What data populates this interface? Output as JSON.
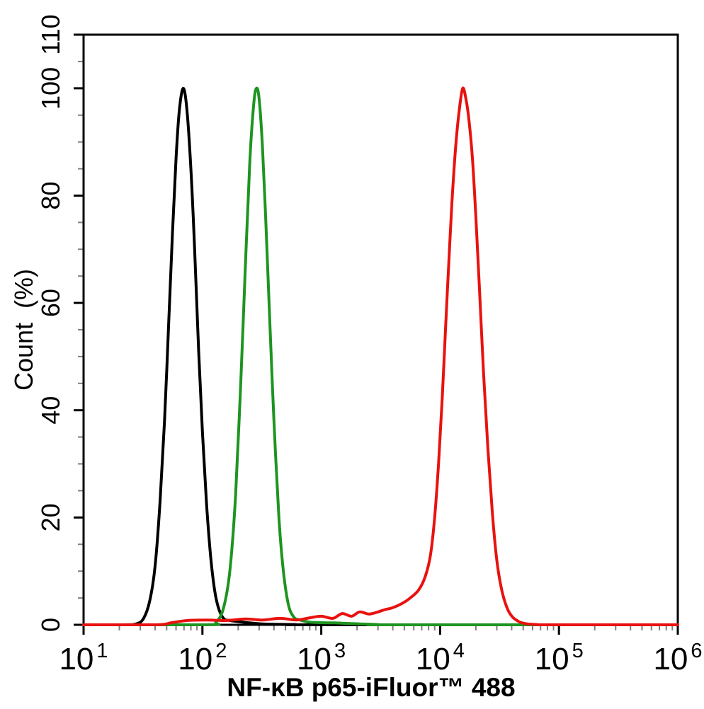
{
  "chart_data": {
    "type": "line",
    "subtype": "flow-cytometry-histogram",
    "title": "",
    "xlabel": "NF-κB p65-iFluor™ 488",
    "ylabel": "Count  (%)",
    "x_scale": "log10",
    "xlim": [
      10,
      1000000
    ],
    "ylim": [
      0,
      110
    ],
    "grid": false,
    "legend": "none",
    "background_color": "#ffffff",
    "axis_color": "#000000",
    "minor_tick_color": "#808080",
    "x_ticks": {
      "base": "10",
      "major_exponents": [
        1,
        2,
        3,
        4,
        5,
        6
      ],
      "minor_mantissas": [
        2,
        3,
        4,
        5,
        6,
        7,
        8,
        9
      ]
    },
    "y_ticks": {
      "major": [
        0,
        20,
        40,
        60,
        80,
        100,
        110
      ],
      "minor_step": 5
    },
    "series": [
      {
        "name": "black-curve",
        "color": "#000000",
        "peak_x": 69,
        "peak_y": 100,
        "points": [
          [
            10,
            0
          ],
          [
            22,
            0
          ],
          [
            28,
            0.2
          ],
          [
            32,
            1.2
          ],
          [
            36,
            4.4
          ],
          [
            40,
            11
          ],
          [
            44,
            23
          ],
          [
            48,
            38
          ],
          [
            52,
            56
          ],
          [
            56,
            73
          ],
          [
            60,
            87
          ],
          [
            64,
            96
          ],
          [
            69,
            100
          ],
          [
            74,
            96
          ],
          [
            80,
            85
          ],
          [
            86,
            70
          ],
          [
            93,
            51
          ],
          [
            100,
            36
          ],
          [
            108,
            23
          ],
          [
            117,
            13
          ],
          [
            127,
            6.3
          ],
          [
            138,
            2.8
          ],
          [
            152,
            1.1
          ],
          [
            170,
            0.8
          ],
          [
            200,
            0.6
          ],
          [
            240,
            0.4
          ],
          [
            300,
            0.2
          ],
          [
            400,
            0.1
          ],
          [
            600,
            0.05
          ],
          [
            1000,
            0
          ],
          [
            1000000,
            0
          ]
        ]
      },
      {
        "name": "green-curve",
        "color": "#1e9421",
        "peak_x": 285,
        "peak_y": 100,
        "points": [
          [
            10,
            0
          ],
          [
            110,
            0
          ],
          [
            130,
            0.5
          ],
          [
            150,
            3
          ],
          [
            170,
            10
          ],
          [
            190,
            24
          ],
          [
            210,
            45
          ],
          [
            230,
            67
          ],
          [
            250,
            86
          ],
          [
            270,
            97
          ],
          [
            285,
            100
          ],
          [
            300,
            98
          ],
          [
            320,
            89
          ],
          [
            345,
            73
          ],
          [
            370,
            56
          ],
          [
            400,
            38
          ],
          [
            440,
            20
          ],
          [
            480,
            10
          ],
          [
            530,
            3.7
          ],
          [
            590,
            1.4
          ],
          [
            660,
            0.9
          ],
          [
            800,
            0.5
          ],
          [
            1000,
            0.4
          ],
          [
            1300,
            0.35
          ],
          [
            1700,
            0.25
          ],
          [
            2200,
            0.15
          ],
          [
            3000,
            0.05
          ],
          [
            4000,
            0
          ],
          [
            1000000,
            0
          ]
        ]
      },
      {
        "name": "red-curve",
        "color": "#e8120e",
        "peak_x": 15500,
        "peak_y": 100,
        "points": [
          [
            10,
            0
          ],
          [
            40,
            0
          ],
          [
            55,
            0.4
          ],
          [
            75,
            0.8
          ],
          [
            110,
            0.9
          ],
          [
            160,
            0.8
          ],
          [
            230,
            1.1
          ],
          [
            320,
            0.9
          ],
          [
            450,
            1.2
          ],
          [
            620,
            0.9
          ],
          [
            800,
            1.3
          ],
          [
            1000,
            1.6
          ],
          [
            1250,
            1.2
          ],
          [
            1500,
            2.1
          ],
          [
            1800,
            1.6
          ],
          [
            2100,
            2.4
          ],
          [
            2500,
            2.0
          ],
          [
            2900,
            2.3
          ],
          [
            3400,
            2.8
          ],
          [
            4000,
            3.2
          ],
          [
            4800,
            4.0
          ],
          [
            5600,
            5.0
          ],
          [
            6600,
            6.5
          ],
          [
            7500,
            9
          ],
          [
            8300,
            13
          ],
          [
            9000,
            20
          ],
          [
            9700,
            30
          ],
          [
            10400,
            42
          ],
          [
            11100,
            55
          ],
          [
            11800,
            67
          ],
          [
            12600,
            79
          ],
          [
            13500,
            89
          ],
          [
            14500,
            96
          ],
          [
            15500,
            100
          ],
          [
            16500,
            98
          ],
          [
            17500,
            94
          ],
          [
            18700,
            87
          ],
          [
            20000,
            76
          ],
          [
            21500,
            62
          ],
          [
            23200,
            47
          ],
          [
            25200,
            33
          ],
          [
            27500,
            21
          ],
          [
            30000,
            12
          ],
          [
            33000,
            6.5
          ],
          [
            36500,
            3.2
          ],
          [
            40500,
            1.5
          ],
          [
            46000,
            0.6
          ],
          [
            53000,
            0.2
          ],
          [
            65000,
            0.05
          ],
          [
            85000,
            0
          ],
          [
            1000000,
            0
          ]
        ]
      }
    ]
  }
}
